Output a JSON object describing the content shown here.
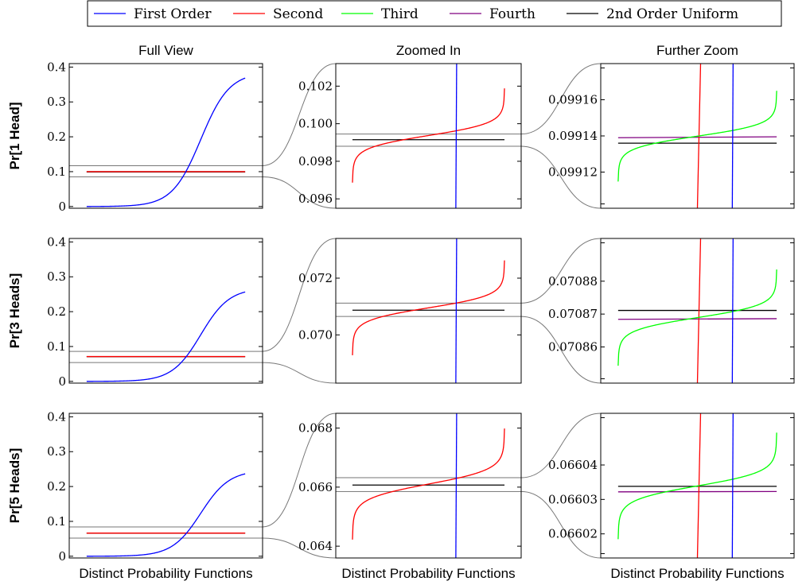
{
  "legend": {
    "position": "top-center",
    "entries": [
      {
        "label": "First Order",
        "color": "#0000ff"
      },
      {
        "label": "Second",
        "color": "#ff0000"
      },
      {
        "label": "Third",
        "color": "#00ff00"
      },
      {
        "label": "Fourth",
        "color": "#800080"
      },
      {
        "label": "2nd Order Uniform",
        "color": "#000000"
      }
    ]
  },
  "column_titles": [
    "Full View",
    "Zoomed In",
    "Further Zoom"
  ],
  "row_labels": [
    "Pr[1 Head]",
    "Pr[3 Heads]",
    "Pr[5 Heads]"
  ],
  "x_label": "Distinct Probability Functions",
  "chart_data": [
    {
      "type": "line",
      "row": 0,
      "col": 0,
      "ylim": [
        -0.005,
        0.41
      ],
      "yticks": [
        0,
        0.1,
        0.2,
        0.3,
        0.4
      ],
      "ytick_labels": [
        "0",
        "0.1",
        "0.2",
        "0.3",
        "0.4"
      ],
      "highlight_band": [
        0.085,
        0.117
      ],
      "series": {
        "first": {
          "kind": "sigmoid",
          "low": 0.0,
          "high": 0.385,
          "center": 0.72,
          "width": 0.09
        },
        "second": {
          "kind": "flat",
          "value": 0.1
        },
        "uniform": 0.0991
      }
    },
    {
      "type": "line",
      "row": 0,
      "col": 1,
      "ylim": [
        0.0955,
        0.1032
      ],
      "yticks": [
        0.096,
        0.098,
        0.1,
        0.102
      ],
      "ytick_labels": [
        "0.096",
        "0.098",
        "0.100",
        "0.102"
      ],
      "highlight_band": [
        0.0988,
        0.09945
      ],
      "series": {
        "first": {
          "kind": "vertical",
          "x": 0.68
        },
        "second": {
          "kind": "logit",
          "center_y": 0.09962,
          "center_x": 0.68,
          "scale": 0.0006
        },
        "uniform": 0.09915
      }
    },
    {
      "type": "line",
      "row": 0,
      "col": 2,
      "ylim": [
        0.0991,
        0.09918
      ],
      "yticks": [
        0.09912,
        0.09914,
        0.09916
      ],
      "ytick_labels": [
        "0.09912",
        "0.09914",
        "0.09916"
      ],
      "series": {
        "first": {
          "kind": "vertical",
          "x": 0.72
        },
        "second": {
          "kind": "vertical",
          "x": 0.51
        },
        "third": {
          "kind": "logit",
          "center_y": 0.09914,
          "center_x": 0.51,
          "scale": 6e-06
        },
        "fourth": {
          "kind": "line",
          "y0": 0.099139,
          "y1": 0.0991395
        },
        "uniform": 0.099136
      }
    },
    {
      "type": "line",
      "row": 1,
      "col": 0,
      "ylim": [
        -0.005,
        0.41
      ],
      "yticks": [
        0,
        0.1,
        0.2,
        0.3,
        0.4
      ],
      "ytick_labels": [
        "0",
        "0.1",
        "0.2",
        "0.3",
        "0.4"
      ],
      "highlight_band": [
        0.054,
        0.086
      ],
      "series": {
        "first": {
          "kind": "sigmoid",
          "low": 0.0,
          "high": 0.268,
          "center": 0.72,
          "width": 0.09
        },
        "second": {
          "kind": "flat",
          "value": 0.0712
        },
        "uniform": 0.0709
      }
    },
    {
      "type": "line",
      "row": 1,
      "col": 1,
      "ylim": [
        0.0683,
        0.0734
      ],
      "yticks": [
        0.07,
        0.072
      ],
      "ytick_labels": [
        "0.070",
        "0.072"
      ],
      "highlight_band": [
        0.07065,
        0.07112
      ],
      "series": {
        "first": {
          "kind": "vertical",
          "x": 0.68
        },
        "second": {
          "kind": "logit",
          "center_y": 0.07112,
          "center_x": 0.68,
          "scale": 0.0004
        },
        "uniform": 0.07087
      }
    },
    {
      "type": "line",
      "row": 1,
      "col": 2,
      "ylim": [
        0.070849,
        0.070893
      ],
      "yticks": [
        0.07086,
        0.07087,
        0.07088
      ],
      "ytick_labels": [
        "0.07086",
        "0.07087",
        "0.07088"
      ],
      "series": {
        "first": {
          "kind": "vertical",
          "x": 0.72
        },
        "second": {
          "kind": "vertical",
          "x": 0.51
        },
        "third": {
          "kind": "logit",
          "center_y": 0.070869,
          "center_x": 0.51,
          "scale": 3.5e-06
        },
        "fourth": {
          "kind": "line",
          "y0": 0.0708684,
          "y1": 0.0708686
        },
        "uniform": 0.0708711
      }
    },
    {
      "type": "line",
      "row": 2,
      "col": 0,
      "ylim": [
        -0.005,
        0.41
      ],
      "yticks": [
        0,
        0.1,
        0.2,
        0.3,
        0.4
      ],
      "ytick_labels": [
        "0",
        "0.1",
        "0.2",
        "0.3",
        "0.4"
      ],
      "highlight_band": [
        0.052,
        0.084
      ],
      "series": {
        "first": {
          "kind": "sigmoid",
          "low": 0.0,
          "high": 0.247,
          "center": 0.72,
          "width": 0.09
        },
        "second": {
          "kind": "flat",
          "value": 0.0664
        },
        "uniform": 0.0661
      }
    },
    {
      "type": "line",
      "row": 2,
      "col": 1,
      "ylim": [
        0.0636,
        0.0685
      ],
      "yticks": [
        0.064,
        0.066,
        0.068
      ],
      "ytick_labels": [
        "0.064",
        "0.066",
        "0.068"
      ],
      "highlight_band": [
        0.06585,
        0.06632
      ],
      "series": {
        "first": {
          "kind": "vertical",
          "x": 0.68
        },
        "second": {
          "kind": "logit",
          "center_y": 0.06629,
          "center_x": 0.68,
          "scale": 0.00045
        },
        "uniform": 0.06607
      }
    },
    {
      "type": "line",
      "row": 2,
      "col": 2,
      "ylim": [
        0.066013,
        0.066055
      ],
      "yticks": [
        0.06602,
        0.06603,
        0.06604
      ],
      "ytick_labels": [
        "0.06602",
        "0.06603",
        "0.06604"
      ],
      "series": {
        "first": {
          "kind": "vertical",
          "x": 0.72
        },
        "second": {
          "kind": "vertical",
          "x": 0.51
        },
        "third": {
          "kind": "logit",
          "center_y": 0.066034,
          "center_x": 0.51,
          "scale": 3.7e-06
        },
        "fourth": {
          "kind": "line",
          "y0": 0.0660322,
          "y1": 0.0660323
        },
        "uniform": 0.0660338
      }
    }
  ]
}
